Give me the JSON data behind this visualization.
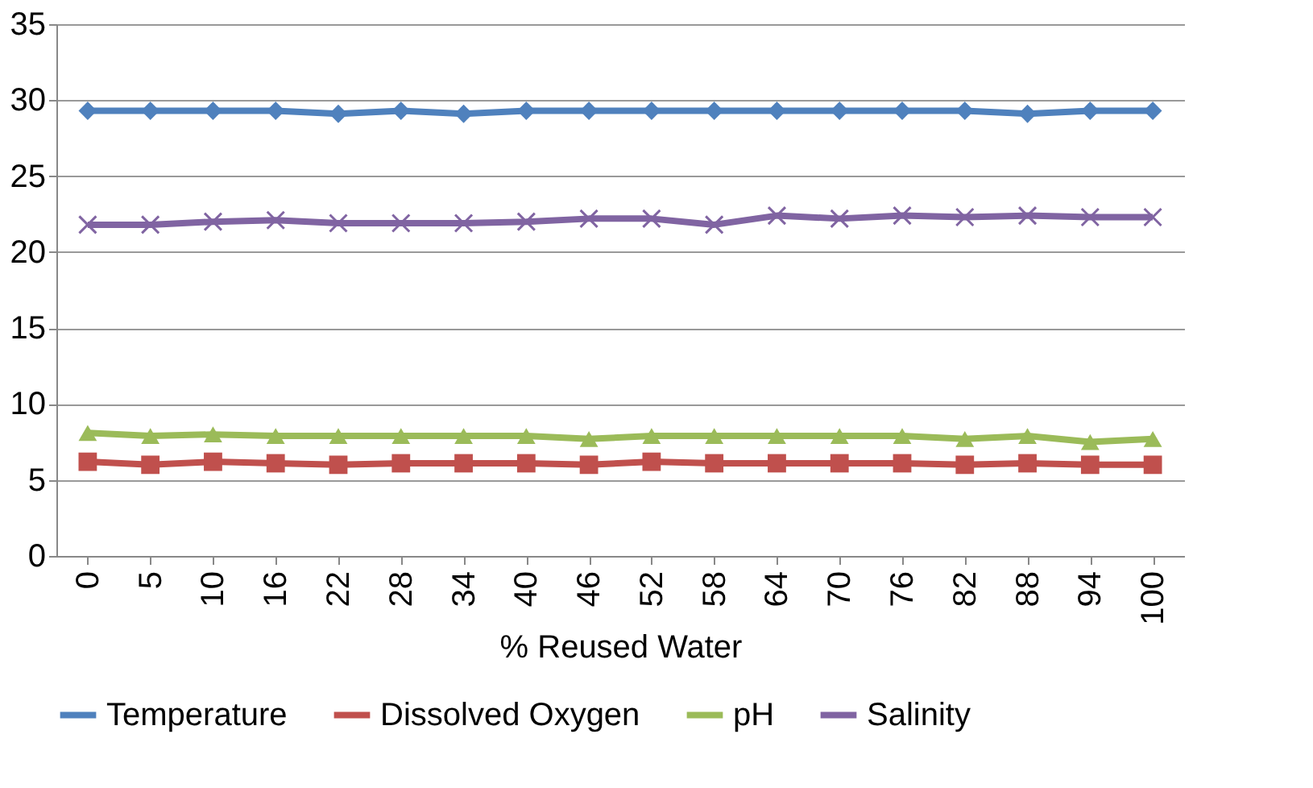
{
  "chart_data": {
    "type": "line",
    "xlabel": "% Reused Water",
    "categories": [
      "0",
      "5",
      "10",
      "16",
      "22",
      "28",
      "34",
      "40",
      "46",
      "52",
      "58",
      "64",
      "70",
      "76",
      "82",
      "88",
      "94",
      "100"
    ],
    "series": [
      {
        "name": "Temperature",
        "color": "#4f81bd",
        "marker": "diamond",
        "values": [
          29.3,
          29.3,
          29.3,
          29.3,
          29.1,
          29.3,
          29.1,
          29.3,
          29.3,
          29.3,
          29.3,
          29.3,
          29.3,
          29.3,
          29.3,
          29.1,
          29.3,
          29.3
        ]
      },
      {
        "name": "Dissolved Oxygen",
        "color": "#c0504d",
        "marker": "square",
        "values": [
          6.2,
          6.0,
          6.2,
          6.1,
          6.0,
          6.1,
          6.1,
          6.1,
          6.0,
          6.2,
          6.1,
          6.1,
          6.1,
          6.1,
          6.0,
          6.1,
          6.0,
          6.0
        ]
      },
      {
        "name": "pH",
        "color": "#9bbb59",
        "marker": "triangle",
        "values": [
          8.1,
          7.9,
          8.0,
          7.9,
          7.9,
          7.9,
          7.9,
          7.9,
          7.7,
          7.9,
          7.9,
          7.9,
          7.9,
          7.9,
          7.7,
          7.9,
          7.5,
          7.7
        ]
      },
      {
        "name": "Salinity",
        "color": "#8064a2",
        "marker": "cross",
        "values": [
          21.8,
          21.8,
          22.0,
          22.1,
          21.9,
          21.9,
          21.9,
          22.0,
          22.2,
          22.2,
          21.8,
          22.4,
          22.2,
          22.4,
          22.3,
          22.4,
          22.3,
          22.3
        ]
      }
    ],
    "ylim": [
      0,
      35
    ],
    "yticks": [
      0,
      5,
      10,
      15,
      20,
      25,
      30,
      35
    ],
    "grid": "y",
    "legend": "bottom"
  }
}
